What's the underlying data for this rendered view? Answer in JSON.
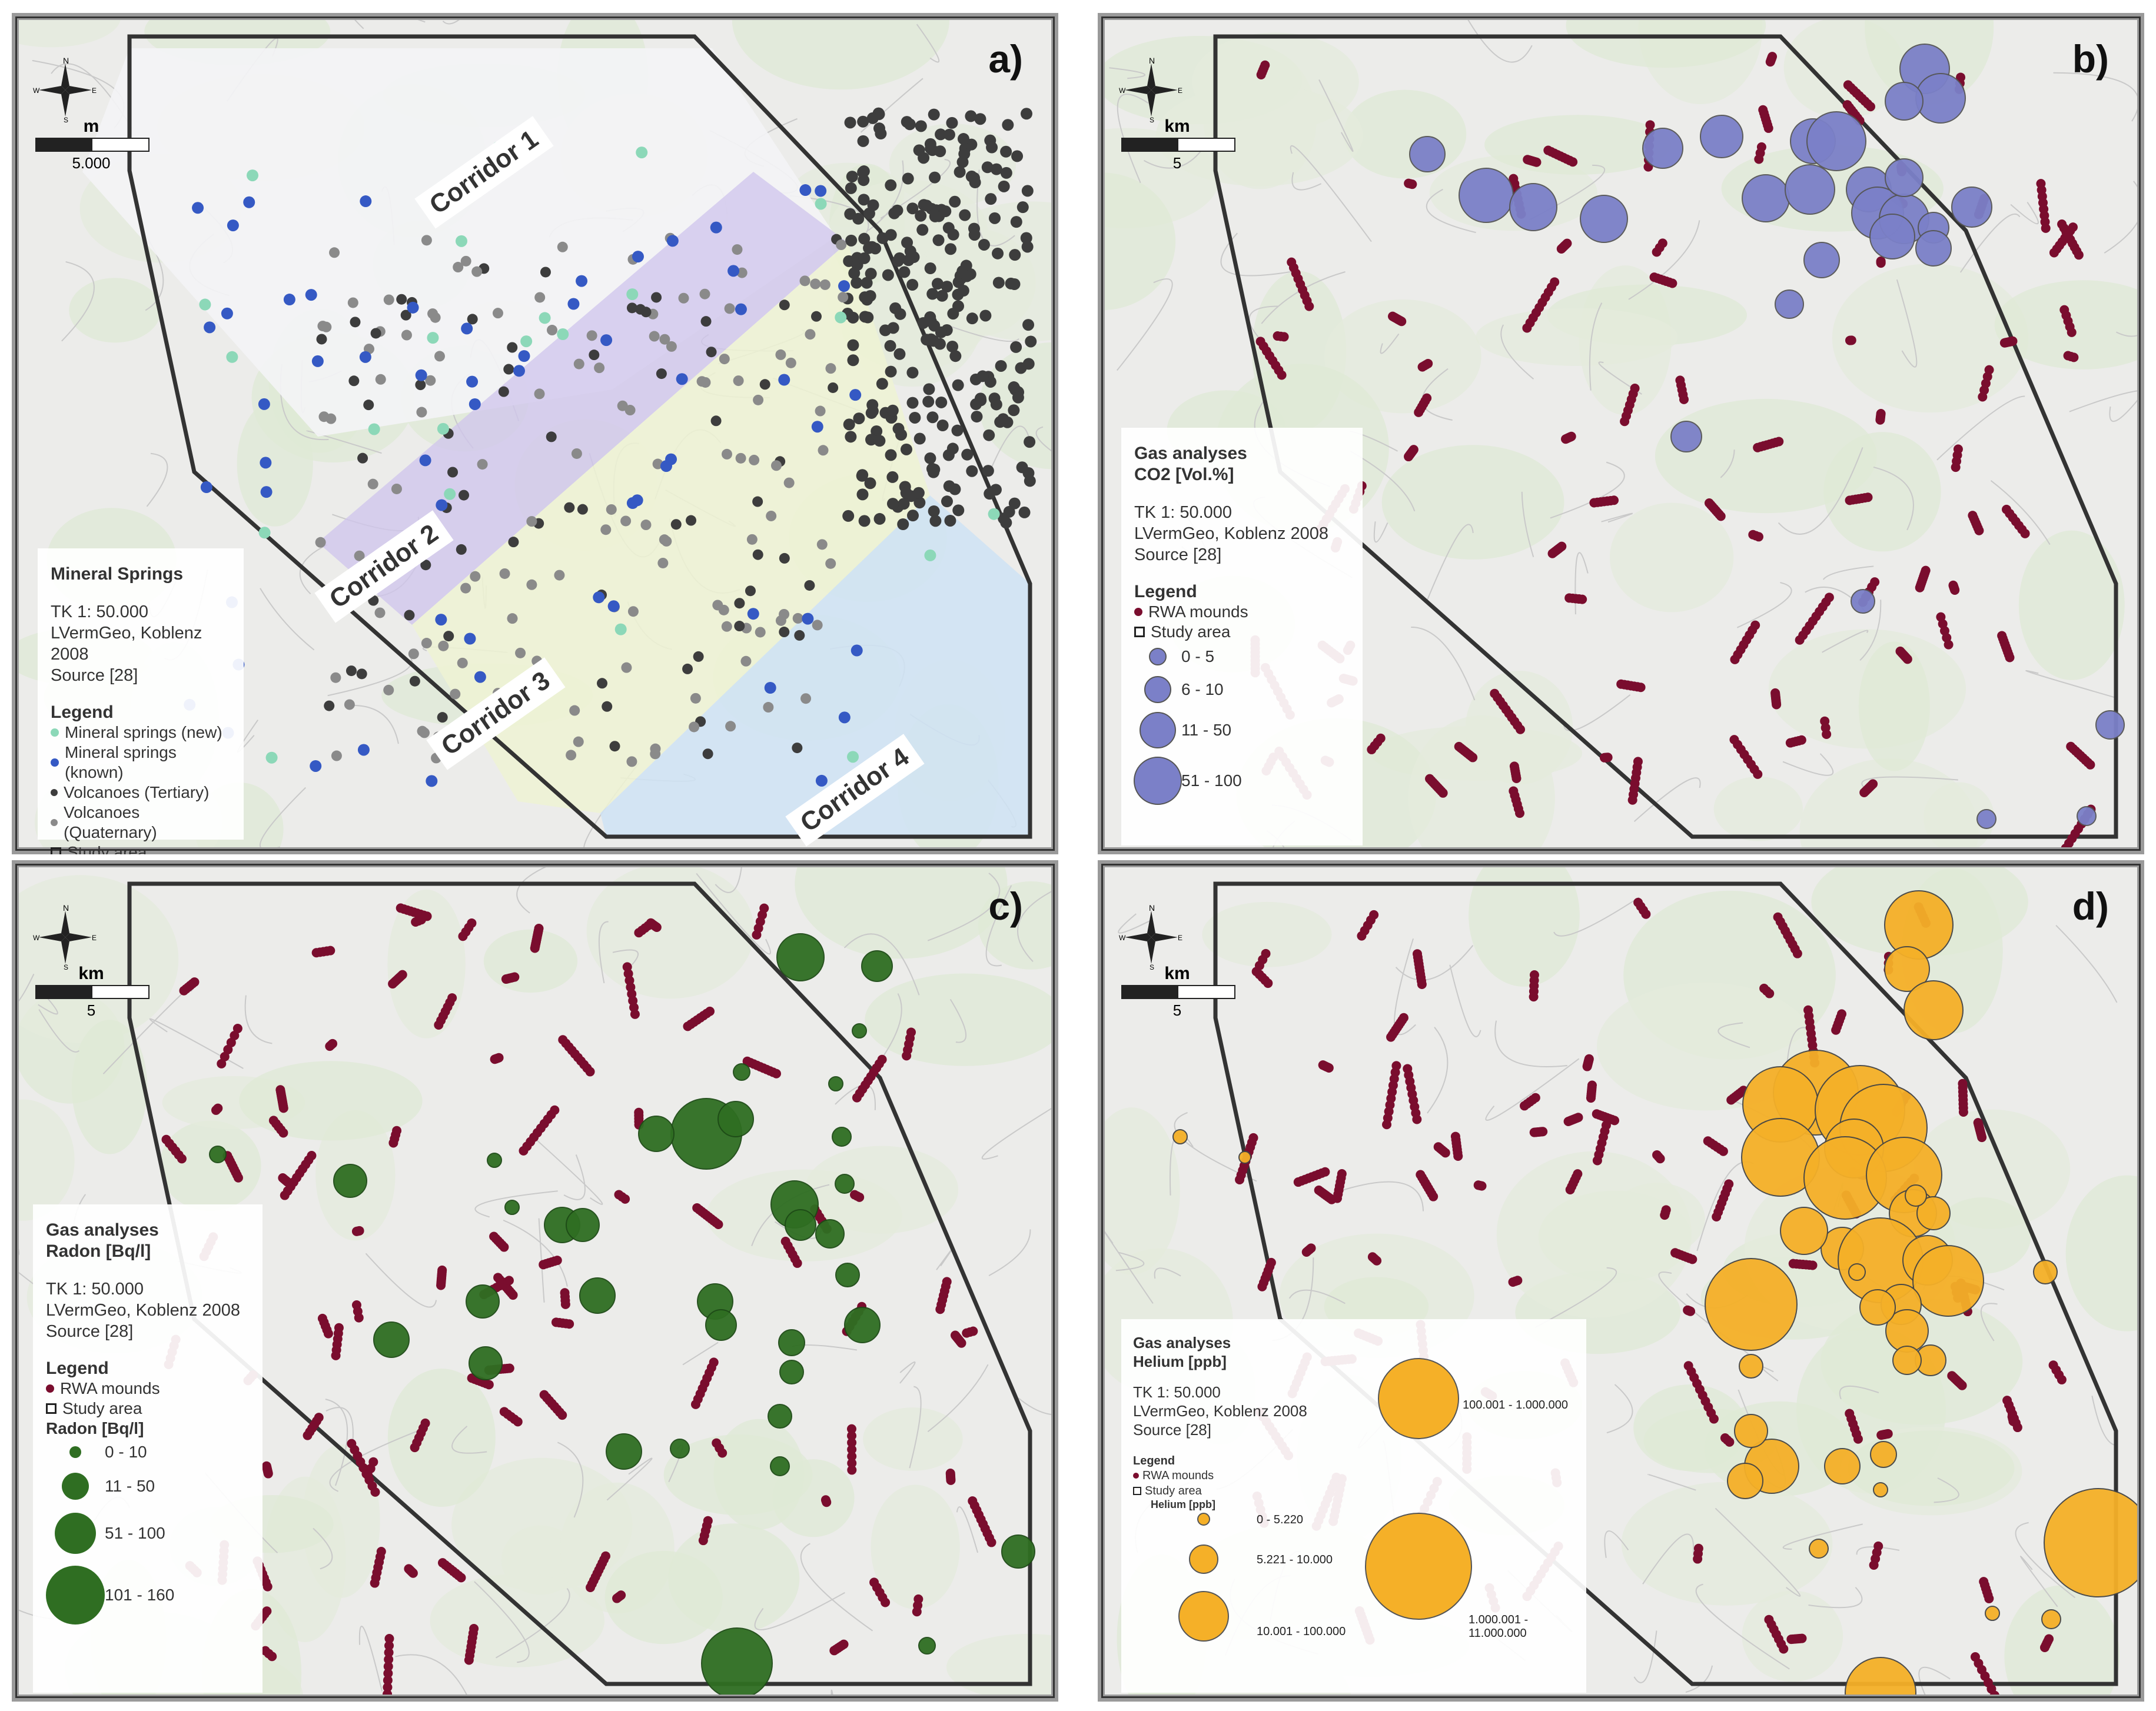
{
  "colors": {
    "rwa": "#7a0d2e",
    "co2": "#7b80c8",
    "radon": "#2f6e22",
    "helium": "#f5b028",
    "spring_new": "#8cd8b8",
    "spring_known": "#3559c4",
    "volcano_tertiary": "#3d3d3d",
    "volcano_quaternary": "#8a8a8a"
  },
  "compass": {
    "n": "N",
    "s": "S",
    "e": "E",
    "w": "W"
  },
  "panel_a": {
    "label": "a)",
    "scale_unit": "m",
    "scale_value": "5.000",
    "corridors": [
      "Corridor 1",
      "Corridor 2",
      "Corridor 3",
      "Corridor 4"
    ],
    "legend": {
      "title": "Mineral Springs",
      "source": [
        "TK 1: 50.000",
        "LVermGeo, Koblenz 2008",
        "Source [28]"
      ],
      "heading": "Legend",
      "items": [
        "Mineral springs (new)",
        "Mineral springs (known)",
        "Volcanoes (Tertiary)",
        "Volcanoes (Quaternary)",
        "Study area"
      ]
    }
  },
  "panel_b": {
    "label": "b)",
    "scale_unit": "km",
    "scale_value": "5",
    "legend": {
      "title": [
        "Gas analyses",
        "CO2 [Vol.%]"
      ],
      "source": [
        "TK 1: 50.000",
        "LVermGeo, Koblenz 2008",
        "Source [28]"
      ],
      "heading": "Legend",
      "rwa": "RWA mounds",
      "study": "Study area",
      "classes": [
        "0 - 5",
        "6 - 10",
        "11 - 50",
        "51 - 100"
      ]
    }
  },
  "panel_c": {
    "label": "c)",
    "scale_unit": "km",
    "scale_value": "5",
    "legend": {
      "title": [
        "Gas analyses",
        "Radon [Bq/l]"
      ],
      "source": [
        "TK 1: 50.000",
        "LVermGeo, Koblenz 2008",
        "Source [28]"
      ],
      "heading": "Legend",
      "rwa": "RWA mounds",
      "study": "Study area",
      "sub": "Radon [Bq/l]",
      "classes": [
        "0 - 10",
        "11 - 50",
        "51 - 100",
        "101 - 160"
      ]
    }
  },
  "panel_d": {
    "label": "d)",
    "scale_unit": "km",
    "scale_value": "5",
    "legend": {
      "title": [
        "Gas analyses",
        "Helium [ppb]"
      ],
      "source": [
        "TK 1: 50.000",
        "LVermGeo, Koblenz 2008",
        "Source [28]"
      ],
      "heading": "Legend",
      "rwa": "RWA mounds",
      "study": "Study area",
      "sub": "Helium [ppb]",
      "classes": [
        "0 - 5.220",
        "5.221 - 10.000",
        "10.001 - 100.000",
        "100.001 - 1.000.000",
        "1.000.001 - 11.000.000"
      ]
    }
  }
}
